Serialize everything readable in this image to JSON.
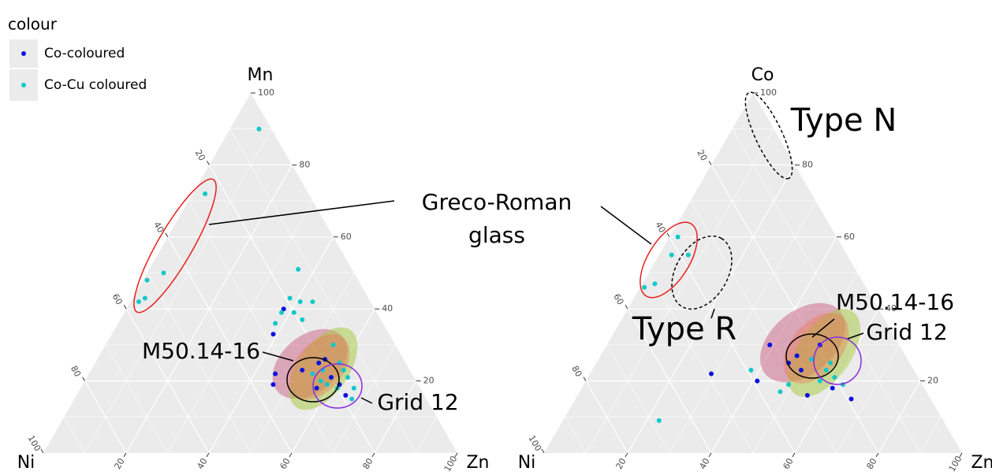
{
  "legend_title": "colour",
  "annotation": [
    "Greco-Roman",
    "glass"
  ],
  "chart_data": [
    {
      "type": "ternary",
      "axes": {
        "top": "Mn",
        "left": "Ni",
        "right": "Zn"
      },
      "ticks": [
        20,
        40,
        60,
        80,
        100
      ],
      "minor_ticks": [
        10,
        30,
        50,
        70,
        90
      ],
      "grid": true,
      "series": [
        {
          "name": "Co-coloured",
          "color": "#0a10e0",
          "top": [
            33,
            22,
            19,
            23,
            25,
            21,
            19,
            16,
            18,
            26,
            40
          ],
          "right": [
            39,
            45,
            46,
            51,
            54,
            59,
            62,
            65,
            57,
            55,
            38
          ]
        },
        {
          "name": "Co-Cu coloured",
          "color": "#10c8c8",
          "top": [
            90,
            72,
            50,
            48,
            43,
            42,
            51,
            43,
            42,
            42,
            39,
            37,
            39,
            36,
            30,
            25,
            23,
            21,
            18,
            15,
            19,
            23,
            18,
            20,
            22
          ],
          "right": [
            7,
            3,
            4,
            1,
            3,
            2,
            36,
            38,
            41,
            44,
            41,
            44,
            38,
            38,
            55,
            59,
            56,
            63,
            62,
            67,
            59,
            61,
            66,
            57,
            54
          ]
        }
      ],
      "annotations": [
        "M50.14-16",
        "Grid 12"
      ]
    },
    {
      "type": "ternary",
      "axes": {
        "top": "Co",
        "left": "Ni",
        "right": "Zn"
      },
      "ticks": [
        20,
        40,
        60,
        80,
        100
      ],
      "minor_ticks": [
        10,
        30,
        50,
        70,
        90
      ],
      "grid": true,
      "series": [
        {
          "name": "Co-coloured",
          "color": "#0a10e0",
          "top": [
            22,
            20,
            30,
            25,
            23,
            16,
            15,
            30,
            27,
            18
          ],
          "right": [
            29,
            41,
            39,
            46,
            50,
            55,
            66,
            51,
            47,
            60
          ]
        },
        {
          "name": "Co-Cu coloured",
          "color": "#10c8c8",
          "top": [
            60,
            55,
            55,
            47,
            46,
            9,
            23,
            17,
            19,
            26,
            23,
            21,
            19,
            20,
            25
          ],
          "right": [
            2,
            7,
            3,
            3,
            1,
            23,
            38,
            48,
            49,
            51,
            56,
            59,
            62,
            56,
            56
          ]
        }
      ],
      "annotations": [
        "Type N",
        "Type R",
        "M50.14-16",
        "Grid 12"
      ]
    }
  ]
}
